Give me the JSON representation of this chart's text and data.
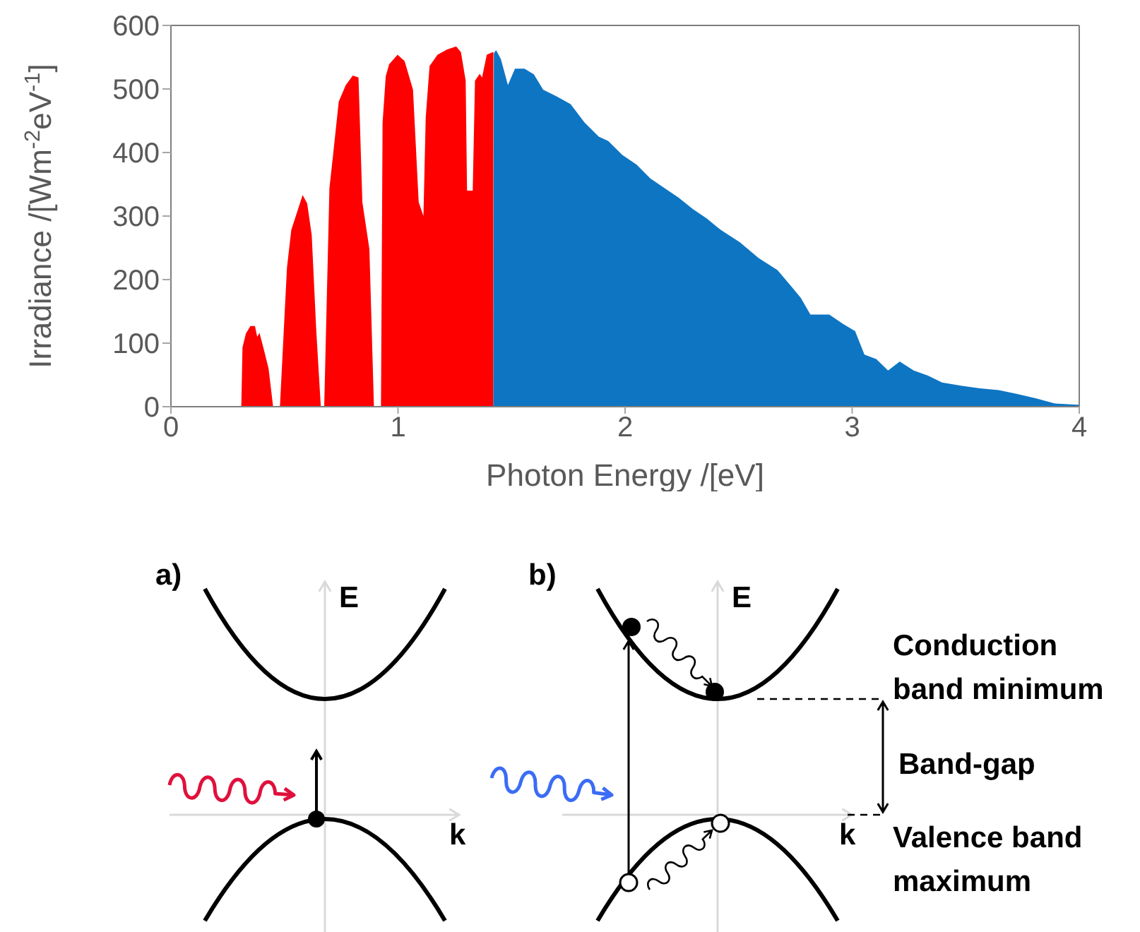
{
  "chart_data": {
    "type": "area",
    "xlabel": "Photon Energy /[eV]",
    "ylabel": "Irradiance /[Wm$^{-2}$eV$^{-1}$]",
    "xlim": [
      0,
      4
    ],
    "xticks": [
      0,
      1,
      2,
      3,
      4
    ],
    "ylim": [
      0,
      600
    ],
    "yticks": [
      0,
      100,
      200,
      300,
      400,
      500,
      600
    ],
    "grid": false,
    "series": [
      {
        "color": "#ff0000",
        "x": [
          0.31,
          0.315,
          0.33,
          0.35,
          0.37,
          0.38,
          0.39,
          0.41,
          0.43,
          0.45,
          0.48,
          0.511,
          0.53,
          0.56,
          0.58,
          0.6,
          0.62,
          0.64,
          0.66,
          0.675,
          0.698,
          0.714,
          0.739,
          0.77,
          0.801,
          0.826,
          0.843,
          0.874,
          0.894,
          0.925,
          0.932,
          0.946,
          0.961,
          0.998,
          1.029,
          1.066,
          1.091,
          1.112,
          1.122,
          1.139,
          1.174,
          1.215,
          1.256,
          1.277,
          1.298,
          1.304,
          1.329,
          1.339,
          1.36,
          1.37,
          1.391,
          1.418,
          1.42
        ],
        "values": [
          0,
          93,
          115,
          127,
          127,
          110,
          116,
          89,
          60,
          0,
          0,
          219,
          278,
          311,
          333,
          320,
          270,
          120,
          0,
          0,
          344,
          396,
          480,
          506,
          521,
          518,
          322,
          248,
          0,
          0,
          447,
          520,
          539,
          554,
          544,
          499,
          322,
          300,
          455,
          536,
          554,
          562,
          567,
          558,
          513,
          340,
          340,
          513,
          524,
          518,
          554,
          558,
          558
        ]
      },
      {
        "color": "#0e75c3",
        "x": [
          1.42,
          1.422,
          1.432,
          1.453,
          1.484,
          1.515,
          1.557,
          1.598,
          1.639,
          1.7,
          1.76,
          1.822,
          1.884,
          1.926,
          1.988,
          2.05,
          2.112,
          2.174,
          2.236,
          2.298,
          2.36,
          2.422,
          2.505,
          2.588,
          2.671,
          2.733,
          2.774,
          2.816,
          2.899,
          2.961,
          3.013,
          3.054,
          3.106,
          3.158,
          3.209,
          3.271,
          3.334,
          3.396,
          3.479,
          3.562,
          3.645,
          3.727,
          3.81,
          3.893,
          4.0
        ],
        "values": [
          0,
          556,
          561,
          547,
          506,
          532,
          532,
          523,
          499,
          488,
          476,
          447,
          425,
          418,
          396,
          381,
          359,
          344,
          329,
          311,
          296,
          278,
          259,
          234,
          215,
          189,
          171,
          145,
          145,
          130,
          119,
          82,
          75,
          57,
          71,
          57,
          49,
          38,
          33,
          29,
          26,
          20,
          13,
          5,
          3
        ]
      }
    ],
    "annotations": [
      "a)",
      "E",
      "k",
      "b)",
      "E",
      "k",
      "Conduction band minimum",
      "Band-gap",
      "Valence band maximum"
    ]
  }
}
